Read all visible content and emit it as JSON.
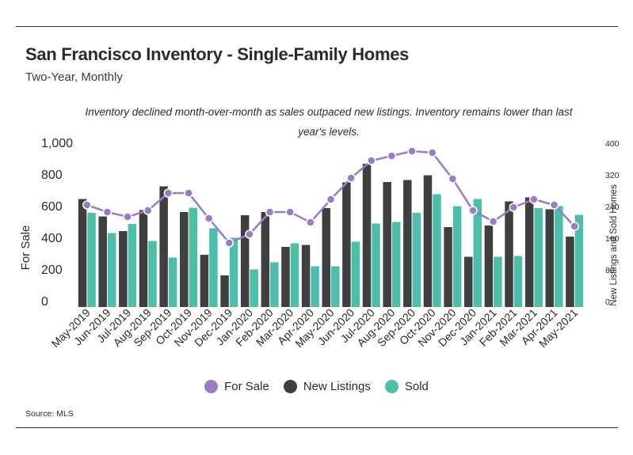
{
  "header": {
    "title": "San Francisco Inventory - Single-Family Homes",
    "subtitle": "Two-Year, Monthly"
  },
  "annotation": "Inventory declined month-over-month as sales outpaced new listings. Inventory remains lower than last year's levels.",
  "source": "Source:  MLS",
  "colors": {
    "for_sale": "#9b7cc3",
    "new_listings": "#3f3f3f",
    "sold": "#4dbfa8",
    "rule": "#2b2b2b"
  },
  "chart_data": {
    "type": "bar",
    "title": "San Francisco Inventory - Single-Family Homes",
    "subtitle": "Two-Year, Monthly",
    "categories": [
      "May-2019",
      "Jun-2019",
      "Jul-2019",
      "Aug-2019",
      "Sep-2019",
      "Oct-2019",
      "Nov-2019",
      "Dec-2019",
      "Jan-2020",
      "Feb-2020",
      "Mar-2020",
      "Apr-2020",
      "May-2020",
      "Jun-2020",
      "Jul-2020",
      "Aug-2020",
      "Sep-2020",
      "Oct-2020",
      "Nov-2020",
      "Dec-2020",
      "Jan-2021",
      "Feb-2021",
      "Mar-2021",
      "Apr-2021",
      "May-2021"
    ],
    "left_axis": {
      "label": "For Sale",
      "ylim": [
        0,
        1000
      ],
      "ticks": [
        "0",
        "200",
        "400",
        "600",
        "800",
        "1,000"
      ]
    },
    "right_axis": {
      "label": "New Listings and Sold Homes",
      "ylim": [
        0,
        400
      ],
      "ticks": [
        "0",
        "80",
        "160",
        "240",
        "320",
        "400"
      ]
    },
    "grid": false,
    "legend_position": "bottom",
    "series": [
      {
        "name": "For Sale",
        "type": "line",
        "axis": "left",
        "values": [
          645,
          600,
          570,
          610,
          720,
          720,
          560,
          405,
          460,
          600,
          600,
          535,
          680,
          815,
          925,
          955,
          985,
          975,
          810,
          610,
          540,
          630,
          680,
          645,
          510
        ]
      },
      {
        "name": "New Listings",
        "type": "bar",
        "axis": "right",
        "values": [
          273,
          229,
          192,
          245,
          305,
          240,
          132,
          80,
          232,
          240,
          152,
          157,
          250,
          315,
          362,
          316,
          321,
          333,
          202,
          127,
          206,
          267,
          277,
          247,
          178
        ]
      },
      {
        "name": "Sold",
        "type": "bar",
        "axis": "right",
        "values": [
          238,
          187,
          210,
          167,
          125,
          251,
          199,
          175,
          95,
          113,
          161,
          103,
          103,
          165,
          211,
          215,
          238,
          285,
          255,
          273,
          127,
          129,
          250,
          255,
          233
        ]
      }
    ]
  }
}
